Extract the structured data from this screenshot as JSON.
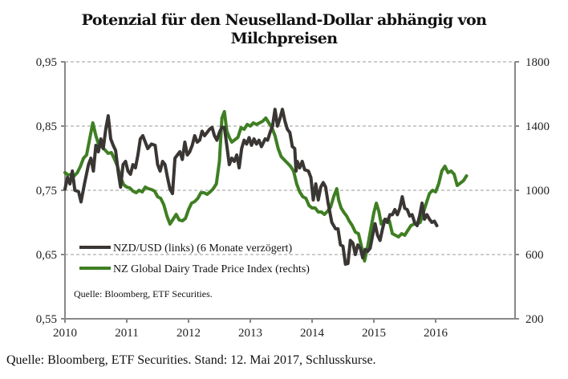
{
  "title_line1": "Potenzial für den Neuselland-Dollar abhängig von",
  "title_line2": "Milchpreisen",
  "footer": "Quelle: Bloomberg, ETF Securities. Stand: 12. Mai 2017, Schlusskurse.",
  "chart_data": {
    "type": "line",
    "title": "Potenzial für den Neuselland-Dollar abhängig von Milchpreisen",
    "source_note": "Quelle: Bloomberg, ETF Securities.",
    "x_ticks": [
      "2010",
      "2011",
      "2012",
      "2013",
      "2014",
      "2015",
      "2016"
    ],
    "xlim": [
      2010,
      2017.3
    ],
    "y_left": {
      "ticks": [
        "0,55",
        "0,65",
        "0,75",
        "0,85",
        "0,95"
      ],
      "lim": [
        0.55,
        0.95
      ]
    },
    "y_right": {
      "ticks": [
        "200",
        "600",
        "1000",
        "1400",
        "1800"
      ],
      "lim": [
        200,
        1800
      ]
    },
    "grid": "horizontal-dashed",
    "legend_position": "bottom-left",
    "series": [
      {
        "name": "NZD/USD (links) (6 Monate verzögert)",
        "axis": "left",
        "color": "#3a3634",
        "points": [
          [
            2010.0,
            0.752
          ],
          [
            2010.04,
            0.77
          ],
          [
            2010.08,
            0.76
          ],
          [
            2010.12,
            0.78
          ],
          [
            2010.16,
            0.75
          ],
          [
            2010.22,
            0.748
          ],
          [
            2010.26,
            0.732
          ],
          [
            2010.32,
            0.762
          ],
          [
            2010.38,
            0.79
          ],
          [
            2010.42,
            0.8
          ],
          [
            2010.46,
            0.78
          ],
          [
            2010.5,
            0.82
          ],
          [
            2010.54,
            0.81
          ],
          [
            2010.58,
            0.83
          ],
          [
            2010.62,
            0.815
          ],
          [
            2010.66,
            0.845
          ],
          [
            2010.7,
            0.866
          ],
          [
            2010.74,
            0.83
          ],
          [
            2010.78,
            0.82
          ],
          [
            2010.82,
            0.812
          ],
          [
            2010.86,
            0.78
          ],
          [
            2010.9,
            0.755
          ],
          [
            2010.94,
            0.79
          ],
          [
            2010.98,
            0.795
          ],
          [
            2011.02,
            0.78
          ],
          [
            2011.06,
            0.775
          ],
          [
            2011.1,
            0.79
          ],
          [
            2011.14,
            0.785
          ],
          [
            2011.18,
            0.805
          ],
          [
            2011.22,
            0.83
          ],
          [
            2011.26,
            0.835
          ],
          [
            2011.3,
            0.825
          ],
          [
            2011.34,
            0.815
          ],
          [
            2011.4,
            0.822
          ],
          [
            2011.46,
            0.82
          ],
          [
            2011.5,
            0.79
          ],
          [
            2011.54,
            0.78
          ],
          [
            2011.58,
            0.795
          ],
          [
            2011.62,
            0.79
          ],
          [
            2011.66,
            0.77
          ],
          [
            2011.7,
            0.752
          ],
          [
            2011.74,
            0.745
          ],
          [
            2011.78,
            0.8
          ],
          [
            2011.82,
            0.805
          ],
          [
            2011.86,
            0.81
          ],
          [
            2011.9,
            0.798
          ],
          [
            2011.94,
            0.825
          ],
          [
            2011.98,
            0.805
          ],
          [
            2012.02,
            0.81
          ],
          [
            2012.06,
            0.82
          ],
          [
            2012.1,
            0.835
          ],
          [
            2012.14,
            0.825
          ],
          [
            2012.18,
            0.828
          ],
          [
            2012.22,
            0.842
          ],
          [
            2012.26,
            0.835
          ],
          [
            2012.3,
            0.84
          ],
          [
            2012.34,
            0.845
          ],
          [
            2012.38,
            0.848
          ],
          [
            2012.42,
            0.835
          ],
          [
            2012.46,
            0.828
          ],
          [
            2012.5,
            0.84
          ],
          [
            2012.54,
            0.848
          ],
          [
            2012.58,
            0.848
          ],
          [
            2012.62,
            0.82
          ],
          [
            2012.66,
            0.79
          ],
          [
            2012.7,
            0.8
          ],
          [
            2012.74,
            0.795
          ],
          [
            2012.78,
            0.805
          ],
          [
            2012.82,
            0.785
          ],
          [
            2012.86,
            0.815
          ],
          [
            2012.9,
            0.828
          ],
          [
            2012.94,
            0.822
          ],
          [
            2012.98,
            0.832
          ],
          [
            2013.02,
            0.82
          ],
          [
            2013.06,
            0.83
          ],
          [
            2013.1,
            0.822
          ],
          [
            2013.14,
            0.828
          ],
          [
            2013.18,
            0.818
          ],
          [
            2013.24,
            0.83
          ],
          [
            2013.28,
            0.828
          ],
          [
            2013.32,
            0.84
          ],
          [
            2013.36,
            0.85
          ],
          [
            2013.4,
            0.876
          ],
          [
            2013.44,
            0.85
          ],
          [
            2013.48,
            0.862
          ],
          [
            2013.52,
            0.876
          ],
          [
            2013.56,
            0.858
          ],
          [
            2013.6,
            0.845
          ],
          [
            2013.64,
            0.84
          ],
          [
            2013.68,
            0.818
          ],
          [
            2013.72,
            0.815
          ],
          [
            2013.74,
            0.78
          ],
          [
            2013.76,
            0.795
          ],
          [
            2013.8,
            0.785
          ],
          [
            2013.84,
            0.795
          ],
          [
            2013.88,
            0.782
          ],
          [
            2013.94,
            0.78
          ],
          [
            2013.98,
            0.77
          ],
          [
            2014.02,
            0.735
          ],
          [
            2014.06,
            0.76
          ],
          [
            2014.1,
            0.735
          ],
          [
            2014.14,
            0.755
          ],
          [
            2014.18,
            0.762
          ],
          [
            2014.22,
            0.755
          ],
          [
            2014.26,
            0.73
          ],
          [
            2014.32,
            0.7
          ],
          [
            2014.38,
            0.69
          ],
          [
            2014.42,
            0.69
          ],
          [
            2014.46,
            0.665
          ],
          [
            2014.5,
            0.663
          ],
          [
            2014.54,
            0.635
          ],
          [
            2014.58,
            0.636
          ],
          [
            2014.62,
            0.672
          ],
          [
            2014.66,
            0.668
          ],
          [
            2014.7,
            0.65
          ],
          [
            2014.74,
            0.665
          ],
          [
            2014.78,
            0.66
          ],
          [
            2014.82,
            0.645
          ],
          [
            2014.86,
            0.658
          ],
          [
            2014.9,
            0.655
          ],
          [
            2014.94,
            0.66
          ],
          [
            2014.98,
            0.68
          ],
          [
            2015.02,
            0.698
          ],
          [
            2015.06,
            0.68
          ],
          [
            2015.1,
            0.672
          ],
          [
            2015.14,
            0.69
          ],
          [
            2015.18,
            0.705
          ],
          [
            2015.22,
            0.7
          ],
          [
            2015.26,
            0.712
          ],
          [
            2015.3,
            0.712
          ],
          [
            2015.34,
            0.72
          ],
          [
            2015.38,
            0.712
          ],
          [
            2015.42,
            0.722
          ],
          [
            2015.46,
            0.74
          ],
          [
            2015.5,
            0.722
          ],
          [
            2015.54,
            0.72
          ],
          [
            2015.58,
            0.71
          ],
          [
            2015.62,
            0.712
          ],
          [
            2015.66,
            0.7
          ],
          [
            2015.7,
            0.695
          ],
          [
            2015.74,
            0.71
          ],
          [
            2015.78,
            0.73
          ],
          [
            2015.82,
            0.705
          ],
          [
            2015.86,
            0.712
          ],
          [
            2015.9,
            0.705
          ],
          [
            2015.94,
            0.7
          ],
          [
            2015.98,
            0.702
          ],
          [
            2016.02,
            0.695
          ]
        ]
      },
      {
        "name": "NZ Global Dairy Trade Price Index (rechts)",
        "axis": "right",
        "color": "#3f7f23",
        "points": [
          [
            2010.0,
            1110
          ],
          [
            2010.05,
            1095
          ],
          [
            2010.1,
            1100
          ],
          [
            2010.15,
            1090
          ],
          [
            2010.2,
            1110
          ],
          [
            2010.25,
            1150
          ],
          [
            2010.3,
            1200
          ],
          [
            2010.35,
            1220
          ],
          [
            2010.4,
            1320
          ],
          [
            2010.45,
            1420
          ],
          [
            2010.5,
            1340
          ],
          [
            2010.55,
            1280
          ],
          [
            2010.6,
            1270
          ],
          [
            2010.65,
            1250
          ],
          [
            2010.7,
            1230
          ],
          [
            2010.75,
            1235
          ],
          [
            2010.8,
            1195
          ],
          [
            2010.85,
            1150
          ],
          [
            2010.9,
            1080
          ],
          [
            2010.95,
            1035
          ],
          [
            2011.0,
            1020
          ],
          [
            2011.05,
            1015
          ],
          [
            2011.1,
            995
          ],
          [
            2011.15,
            985
          ],
          [
            2011.2,
            1000
          ],
          [
            2011.25,
            990
          ],
          [
            2011.3,
            1020
          ],
          [
            2011.35,
            1010
          ],
          [
            2011.4,
            1005
          ],
          [
            2011.45,
            995
          ],
          [
            2011.5,
            960
          ],
          [
            2011.55,
            950
          ],
          [
            2011.6,
            910
          ],
          [
            2011.65,
            840
          ],
          [
            2011.7,
            790
          ],
          [
            2011.75,
            820
          ],
          [
            2011.8,
            850
          ],
          [
            2011.85,
            815
          ],
          [
            2011.9,
            810
          ],
          [
            2011.95,
            825
          ],
          [
            2012.0,
            880
          ],
          [
            2012.05,
            920
          ],
          [
            2012.1,
            930
          ],
          [
            2012.15,
            950
          ],
          [
            2012.2,
            985
          ],
          [
            2012.25,
            985
          ],
          [
            2012.3,
            975
          ],
          [
            2012.35,
            990
          ],
          [
            2012.4,
            1010
          ],
          [
            2012.45,
            1040
          ],
          [
            2012.5,
            1180
          ],
          [
            2012.54,
            1450
          ],
          [
            2012.58,
            1490
          ],
          [
            2012.62,
            1370
          ],
          [
            2012.66,
            1330
          ],
          [
            2012.7,
            1300
          ],
          [
            2012.75,
            1315
          ],
          [
            2012.8,
            1330
          ],
          [
            2012.85,
            1390
          ],
          [
            2012.9,
            1380
          ],
          [
            2012.95,
            1410
          ],
          [
            2013.0,
            1400
          ],
          [
            2013.05,
            1420
          ],
          [
            2013.1,
            1410
          ],
          [
            2013.15,
            1420
          ],
          [
            2013.2,
            1430
          ],
          [
            2013.25,
            1450
          ],
          [
            2013.3,
            1420
          ],
          [
            2013.35,
            1390
          ],
          [
            2013.4,
            1340
          ],
          [
            2013.45,
            1260
          ],
          [
            2013.5,
            1210
          ],
          [
            2013.55,
            1190
          ],
          [
            2013.6,
            1170
          ],
          [
            2013.65,
            1150
          ],
          [
            2013.7,
            1120
          ],
          [
            2013.75,
            1040
          ],
          [
            2013.8,
            990
          ],
          [
            2013.85,
            960
          ],
          [
            2013.9,
            950
          ],
          [
            2013.95,
            905
          ],
          [
            2014.0,
            890
          ],
          [
            2014.05,
            890
          ],
          [
            2014.1,
            865
          ],
          [
            2014.15,
            865
          ],
          [
            2014.2,
            850
          ],
          [
            2014.25,
            870
          ],
          [
            2014.3,
            895
          ],
          [
            2014.35,
            960
          ],
          [
            2014.4,
            1010
          ],
          [
            2014.43,
            940
          ],
          [
            2014.47,
            890
          ],
          [
            2014.52,
            860
          ],
          [
            2014.56,
            840
          ],
          [
            2014.6,
            810
          ],
          [
            2014.65,
            780
          ],
          [
            2014.7,
            740
          ],
          [
            2014.75,
            730
          ],
          [
            2014.8,
            650
          ],
          [
            2014.85,
            560
          ],
          [
            2014.9,
            650
          ],
          [
            2014.95,
            760
          ],
          [
            2015.0,
            860
          ],
          [
            2015.04,
            920
          ],
          [
            2015.08,
            870
          ],
          [
            2015.12,
            790
          ],
          [
            2015.16,
            810
          ],
          [
            2015.2,
            820
          ],
          [
            2015.25,
            810
          ],
          [
            2015.3,
            730
          ],
          [
            2015.35,
            720
          ],
          [
            2015.4,
            710
          ],
          [
            2015.45,
            730
          ],
          [
            2015.5,
            720
          ],
          [
            2015.55,
            750
          ],
          [
            2015.6,
            780
          ],
          [
            2015.65,
            790
          ],
          [
            2015.7,
            790
          ],
          [
            2015.75,
            800
          ],
          [
            2015.8,
            860
          ],
          [
            2015.85,
            920
          ],
          [
            2015.9,
            980
          ],
          [
            2015.95,
            1000
          ],
          [
            2016.0,
            990
          ],
          [
            2016.05,
            1040
          ],
          [
            2016.1,
            1120
          ],
          [
            2016.15,
            1150
          ],
          [
            2016.2,
            1110
          ],
          [
            2016.25,
            1120
          ],
          [
            2016.3,
            1100
          ],
          [
            2016.35,
            1030
          ],
          [
            2016.4,
            1045
          ],
          [
            2016.45,
            1060
          ],
          [
            2016.5,
            1090
          ]
        ]
      }
    ]
  }
}
